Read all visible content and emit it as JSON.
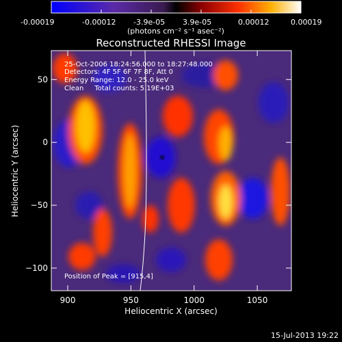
{
  "colorbar": {
    "tick_labels": [
      "-0.00019",
      "-0.00012",
      "-3.9e-05",
      "3.9e-05",
      "0.00012",
      "0.00019"
    ],
    "unit_label": "(photons cm⁻² s⁻¹ asec⁻²)",
    "range": [
      -0.00019,
      0.00019
    ]
  },
  "title": "Reconstructed RHESSI Image",
  "annotations": {
    "time_range": "25-Oct-2006 18:24:56.000 to 18:27:48.000",
    "detectors": "Detectors: 4F 5F 6F 7F 8F, Att 0",
    "energy": "Energy Range: 12.0 - 25.0 keV",
    "clean": "Clean     Total counts: 5.19E+03",
    "peak": "Position of Peak = [915,4]"
  },
  "axes": {
    "xlabel": "Heliocentric X (arcsec)",
    "ylabel": "Heliocentric Y (arcsec)",
    "x_range": [
      887,
      1077
    ],
    "y_range": [
      -118,
      73
    ],
    "x_ticks": [
      900,
      950,
      1000,
      1050
    ],
    "y_ticks": [
      50,
      0,
      -50,
      -100
    ],
    "x_tick_labels": [
      "900",
      "950",
      "1000",
      "1050"
    ],
    "y_tick_labels": [
      "50",
      "0",
      "−50",
      "−100"
    ]
  },
  "timestamp": "15-Jul-2013 19:22"
}
